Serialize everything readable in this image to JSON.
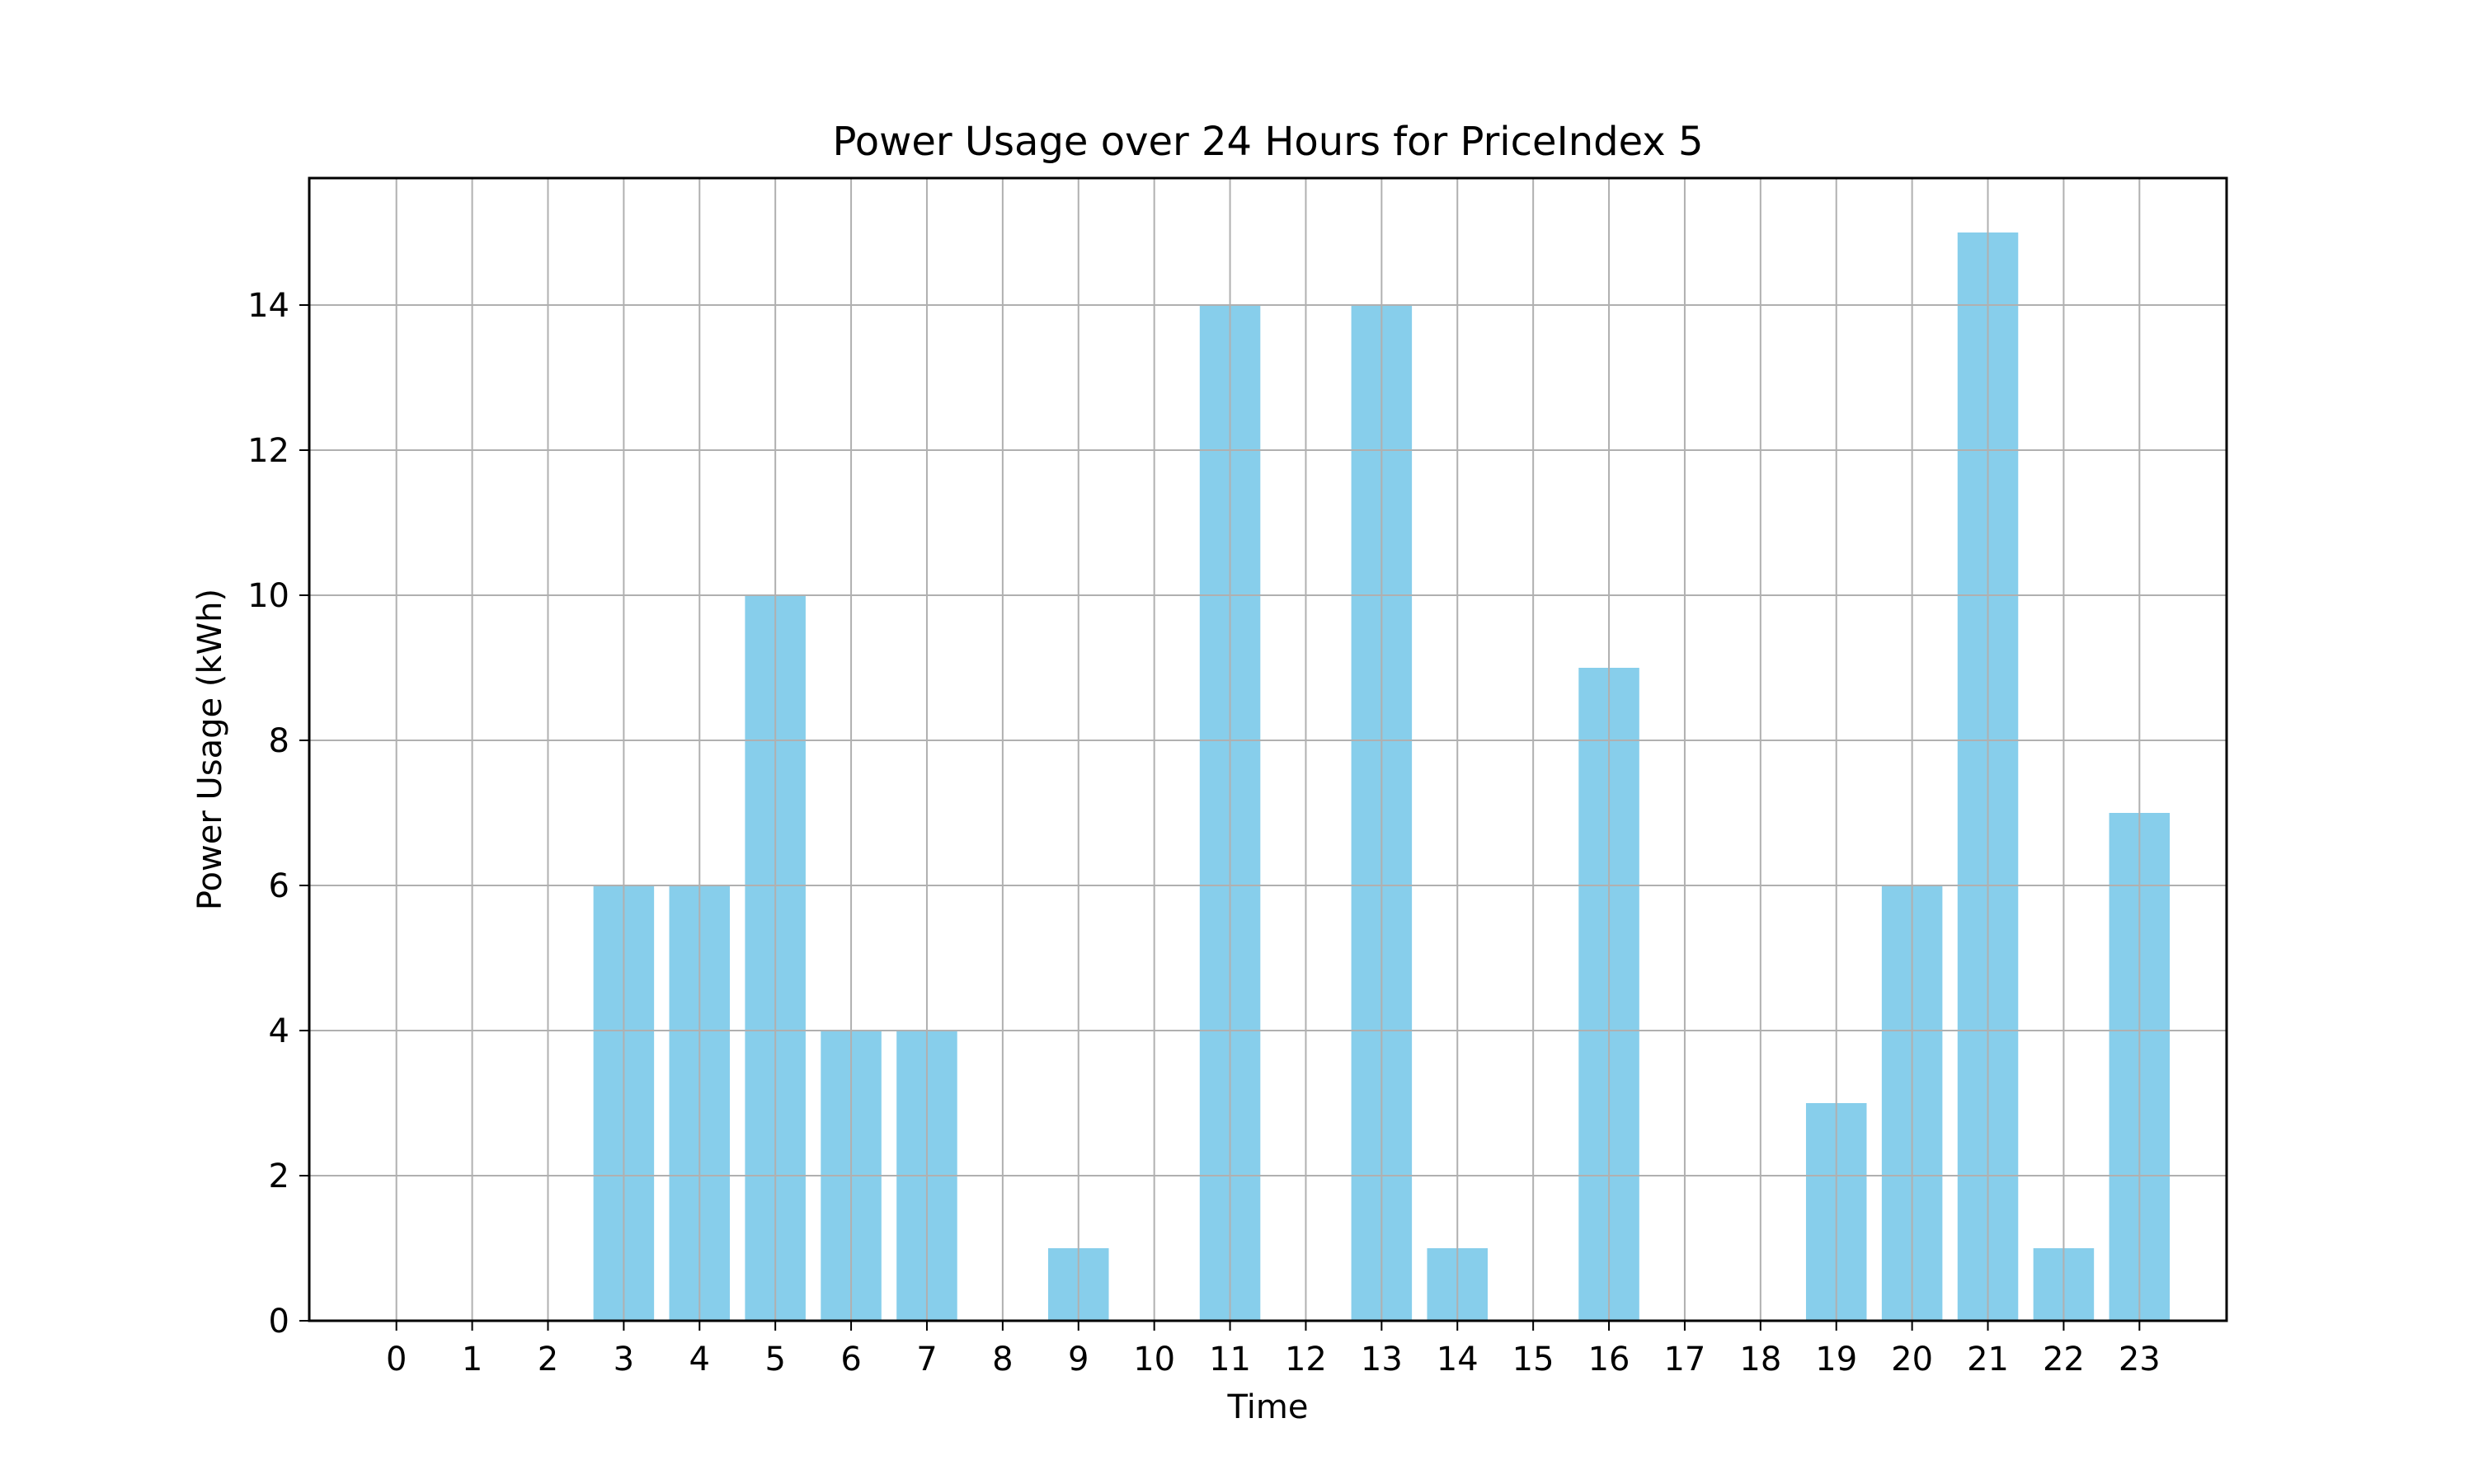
{
  "chart_data": {
    "type": "bar",
    "title": "Power Usage over 24 Hours for PriceIndex 5",
    "xlabel": "Time",
    "ylabel": "Power Usage (kWh)",
    "categories": [
      "0",
      "1",
      "2",
      "3",
      "4",
      "5",
      "6",
      "7",
      "8",
      "9",
      "10",
      "11",
      "12",
      "13",
      "14",
      "15",
      "16",
      "17",
      "18",
      "19",
      "20",
      "21",
      "22",
      "23"
    ],
    "values": [
      0,
      0,
      0,
      6,
      6,
      10,
      4,
      4,
      0,
      1,
      0,
      14,
      0,
      14,
      1,
      0,
      9,
      0,
      0,
      3,
      6,
      15,
      1,
      7
    ],
    "ylim": [
      0,
      15.75
    ],
    "yticks": [
      "0",
      "2",
      "4",
      "6",
      "8",
      "10",
      "12",
      "14"
    ],
    "grid": true,
    "bar_color": "#87ceeb",
    "grid_color": "#b0b0b0"
  }
}
